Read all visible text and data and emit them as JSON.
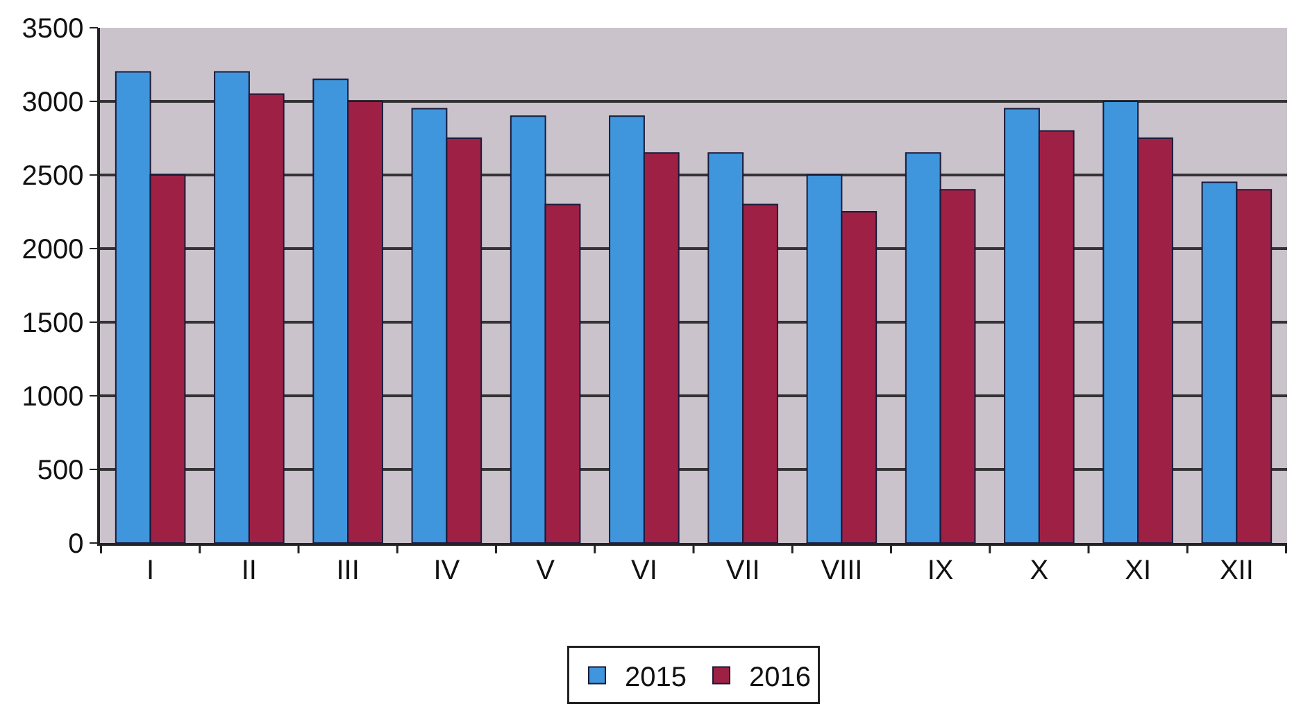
{
  "chart_data": {
    "type": "bar",
    "categories": [
      "I",
      "II",
      "III",
      "IV",
      "V",
      "VI",
      "VII",
      "VIII",
      "IX",
      "X",
      "XI",
      "XII"
    ],
    "series": [
      {
        "name": "2015",
        "color": "#3f96dc",
        "values": [
          3200,
          3200,
          3150,
          2950,
          2900,
          2900,
          2650,
          2500,
          2650,
          2950,
          3000,
          2450
        ]
      },
      {
        "name": "2016",
        "color": "#9e2145",
        "values": [
          2500,
          3050,
          3000,
          2750,
          2300,
          2650,
          2300,
          2250,
          2400,
          2800,
          2750,
          2400
        ]
      }
    ],
    "ylim": [
      0,
      3500
    ],
    "yticks": [
      0,
      500,
      1000,
      1500,
      2000,
      2500,
      3000,
      3500
    ],
    "grid": "y",
    "legend": "bottom"
  }
}
